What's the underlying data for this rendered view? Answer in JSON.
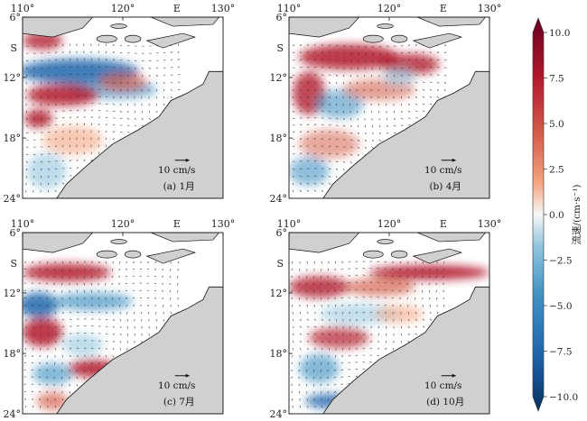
{
  "figure": {
    "panels": [
      {
        "id": "jan",
        "label": "(a) 1月",
        "scale_label": "10 cm/s"
      },
      {
        "id": "apr",
        "label": "(b) 4月",
        "scale_label": "10 cm/s"
      },
      {
        "id": "jul",
        "label": "(c) 7月",
        "scale_label": "10 cm/s"
      },
      {
        "id": "oct",
        "label": "(d) 10月",
        "scale_label": "10 cm/s"
      }
    ],
    "lon_ticks": [
      "110°",
      "120°",
      "130°"
    ],
    "lon_unit": "E",
    "lat_ticks": [
      "6°",
      "12°",
      "18°",
      "24°"
    ],
    "lat_unit": "S",
    "colorbar": {
      "title": "流速/(cm·s⁻¹)",
      "ticks": [
        "10.0",
        "7.5",
        "5.0",
        "2.5",
        "0.0",
        "−2.5",
        "−5.0",
        "−7.5",
        "−10.0"
      ],
      "range": [
        -10,
        10
      ],
      "colors": {
        "max": "#67001f",
        "high": "#d6604d",
        "mid": "#f7f7f7",
        "low": "#4393c3",
        "min": "#053061"
      }
    },
    "colors": {
      "land": "#d0d0d0",
      "coast": "#111111",
      "quiver": "#333333"
    }
  }
}
